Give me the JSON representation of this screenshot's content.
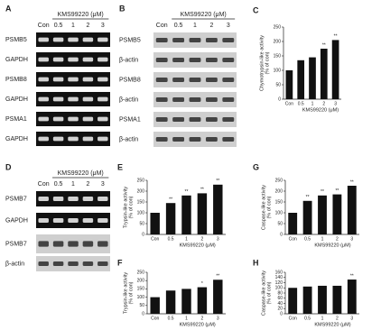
{
  "gels": [
    {
      "label": "A",
      "treatment": "KMS99220 (μM)",
      "lanes": [
        "Con",
        "0.5",
        "1",
        "2",
        "3"
      ],
      "rows": [
        {
          "name": "PSMB5",
          "bg": "dark"
        },
        {
          "name": "GAPDH",
          "bg": "dark"
        },
        {
          "name": "PSMB8",
          "bg": "dark"
        },
        {
          "name": "GAPDH",
          "bg": "dark"
        },
        {
          "name": "PSMA1",
          "bg": "dark"
        },
        {
          "name": "GAPDH",
          "bg": "dark"
        }
      ]
    },
    {
      "label": "B",
      "treatment": "KMS99220 (μM)",
      "lanes": [
        "Con",
        "0.5",
        "1",
        "2",
        "3"
      ],
      "rows": [
        {
          "name": "PSMB5",
          "bg": "light"
        },
        {
          "name": "β-actin",
          "bg": "light"
        },
        {
          "name": "PSMB8",
          "bg": "light"
        },
        {
          "name": "β-actin",
          "bg": "light"
        },
        {
          "name": "PSMA1",
          "bg": "light"
        },
        {
          "name": "β-actin",
          "bg": "light"
        }
      ]
    },
    {
      "label": "D",
      "treatment": "KMS99220 (μM)",
      "lanes": [
        "Con",
        "0.5",
        "1",
        "2",
        "3"
      ],
      "rows": [
        {
          "name": "PSMB7",
          "bg": "dark"
        },
        {
          "name": "GAPDH",
          "bg": "dark"
        },
        {
          "name": "PSMB7",
          "bg": "light"
        },
        {
          "name": "β-actin",
          "bg": "light"
        }
      ]
    }
  ],
  "chart_data": [
    {
      "type": "bar",
      "panel": "C",
      "ylabel": [
        "Chymotrypsin-like activity",
        "(% of con)"
      ],
      "xlabel": "KMS99220 (μM)",
      "categories": [
        "Con",
        "0.5",
        "1",
        "2",
        "3"
      ],
      "values": [
        100,
        135,
        145,
        175,
        205
      ],
      "color": "#111111",
      "ylim": [
        0,
        250
      ],
      "yticks": [
        0,
        50,
        100,
        150,
        200,
        250
      ],
      "annotations": [
        {
          "index": 3,
          "text": "**"
        },
        {
          "index": 4,
          "text": "**"
        }
      ]
    },
    {
      "type": "bar",
      "panel": "E",
      "ylabel": [
        "Trypsin-like activity",
        "(% of con)"
      ],
      "xlabel": "KMS99220 (μM)",
      "categories": [
        "Con",
        "0.5",
        "1",
        "2",
        "3"
      ],
      "values": [
        100,
        145,
        180,
        190,
        230
      ],
      "color": "#111111",
      "ylim": [
        0,
        250
      ],
      "yticks": [
        0,
        50,
        100,
        150,
        200,
        250
      ],
      "annotations": [
        {
          "index": 1,
          "text": "**"
        },
        {
          "index": 2,
          "text": "**"
        },
        {
          "index": 3,
          "text": "**"
        },
        {
          "index": 4,
          "text": "**"
        }
      ]
    },
    {
      "type": "bar",
      "panel": "F",
      "ylabel": [
        "Trypsin-like activity",
        "(% of con)"
      ],
      "xlabel": "KMS99220 (μM)",
      "categories": [
        "Con",
        "0.5",
        "1",
        "2",
        "3"
      ],
      "values": [
        100,
        140,
        150,
        160,
        205
      ],
      "color": "#111111",
      "ylim": [
        0,
        250
      ],
      "yticks": [
        0,
        50,
        100,
        150,
        200,
        250
      ],
      "annotations": [
        {
          "index": 3,
          "text": "*"
        },
        {
          "index": 4,
          "text": "**"
        }
      ]
    },
    {
      "type": "bar",
      "panel": "G",
      "ylabel": [
        "Caspase-like activity",
        "(% of con)"
      ],
      "xlabel": "KMS99220 (μM)",
      "categories": [
        "Con",
        "0.5",
        "1",
        "2",
        "3"
      ],
      "values": [
        100,
        155,
        180,
        185,
        225
      ],
      "color": "#111111",
      "ylim": [
        0,
        250
      ],
      "yticks": [
        0,
        50,
        100,
        150,
        200,
        250
      ],
      "annotations": [
        {
          "index": 1,
          "text": "**"
        },
        {
          "index": 2,
          "text": "**"
        },
        {
          "index": 3,
          "text": "**"
        },
        {
          "index": 4,
          "text": "**"
        }
      ]
    },
    {
      "type": "bar",
      "panel": "H",
      "ylabel": [
        "Caspase-like activity",
        "(% of con)"
      ],
      "xlabel": "KMS99220 (μM)",
      "categories": [
        "Con",
        "0.5",
        "1",
        "2",
        "3"
      ],
      "values": [
        100,
        105,
        108,
        108,
        132
      ],
      "color": "#111111",
      "ylim": [
        0,
        160
      ],
      "yticks": [
        0,
        20,
        40,
        60,
        80,
        100,
        120,
        140,
        160
      ],
      "annotations": [
        {
          "index": 4,
          "text": "**"
        }
      ]
    }
  ]
}
